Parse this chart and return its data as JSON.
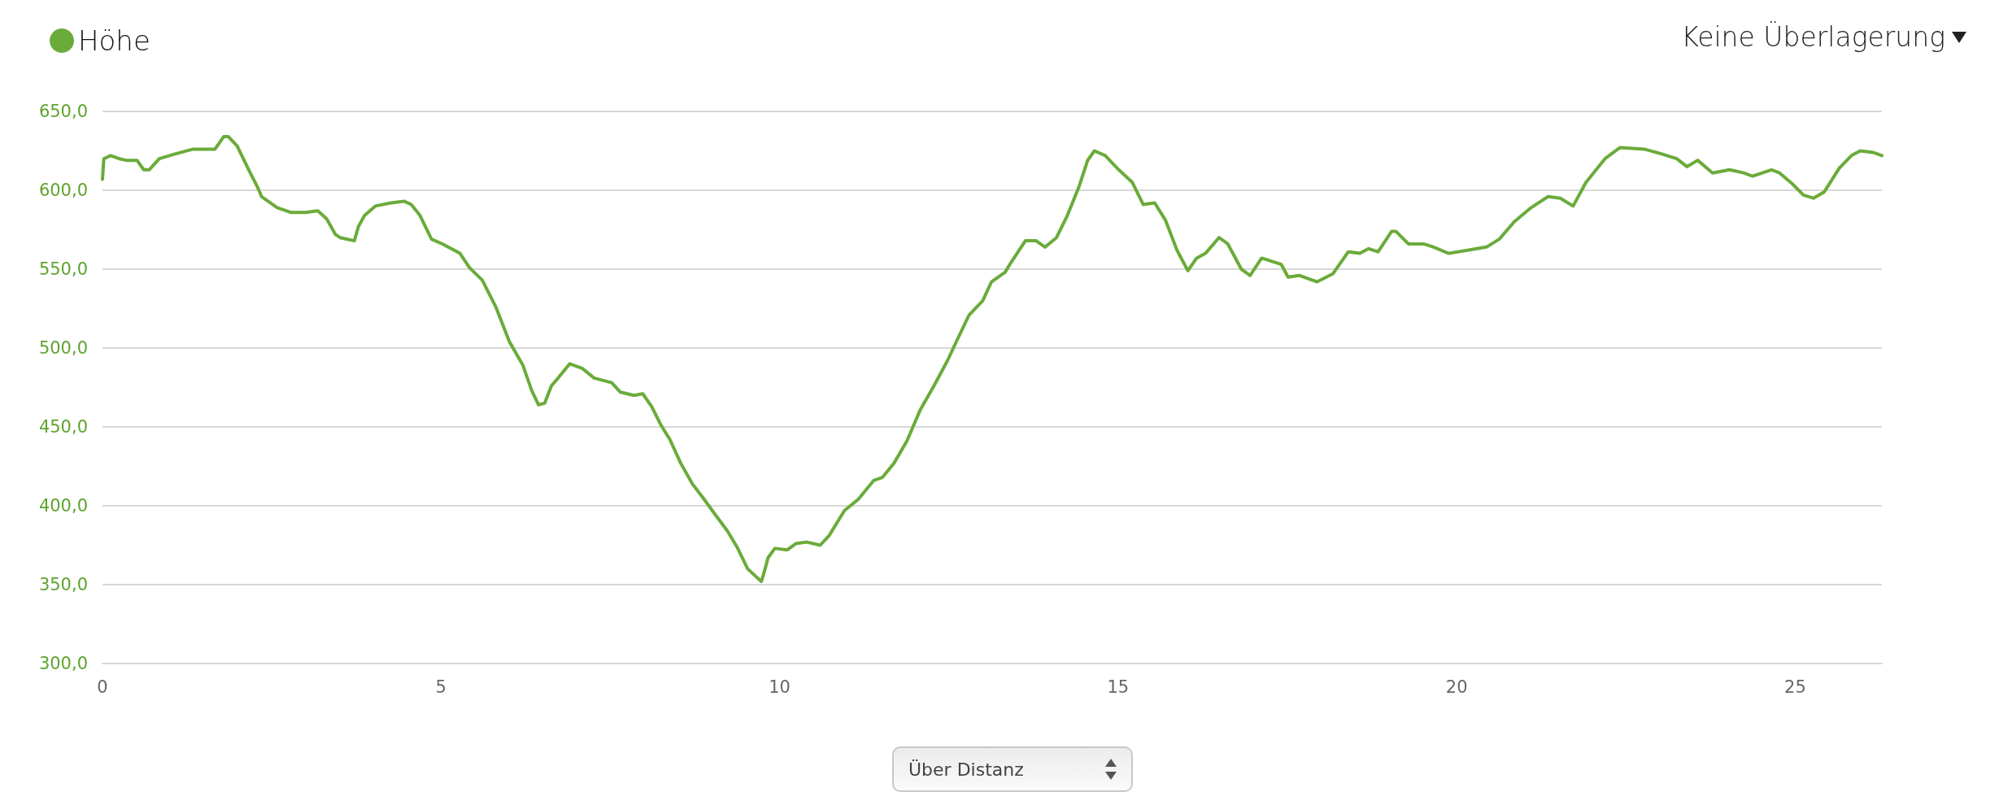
{
  "chart_data": {
    "type": "line",
    "xlim": [
      0,
      26.28
    ],
    "xticks": [
      0,
      5,
      10,
      15,
      20,
      25
    ],
    "ylim": [
      300,
      650
    ],
    "yticks": [
      {
        "value": 300,
        "label": "300,0"
      },
      {
        "value": 350,
        "label": "350,0"
      },
      {
        "value": 400,
        "label": "400,0"
      },
      {
        "value": 450,
        "label": "450,0"
      },
      {
        "value": 500,
        "label": "500,0"
      },
      {
        "value": 550,
        "label": "550,0"
      },
      {
        "value": 600,
        "label": "600,0"
      },
      {
        "value": 650,
        "label": "650,0"
      }
    ],
    "grid": "y",
    "legend": "top left",
    "marker": "none",
    "line_style": "solid",
    "annotations": [
      "Keine Überlagerung",
      "Über Distanz"
    ],
    "series": [
      {
        "name": "Höhe",
        "color": "#6aab3a",
        "x": [
          0,
          0.02,
          0.12,
          0.25,
          0.35,
          0.51,
          0.61,
          0.69,
          0.84,
          1.07,
          1.33,
          1.66,
          1.79,
          1.86,
          1.99,
          2.16,
          2.29,
          2.35,
          2.58,
          2.78,
          3.0,
          3.18,
          3.31,
          3.44,
          3.51,
          3.72,
          3.78,
          3.87,
          4.03,
          4.26,
          4.46,
          4.56,
          4.69,
          4.86,
          5.02,
          5.15,
          5.28,
          5.42,
          5.61,
          5.81,
          6.01,
          6.21,
          6.34,
          6.44,
          6.53,
          6.63,
          6.73,
          6.9,
          7.09,
          7.26,
          7.52,
          7.65,
          7.85,
          7.98,
          8.11,
          8.25,
          8.38,
          8.54,
          8.71,
          8.87,
          9.04,
          9.23,
          9.37,
          9.53,
          9.73,
          9.76,
          9.83,
          9.93,
          10.11,
          10.24,
          10.4,
          10.6,
          10.73,
          10.96,
          11.16,
          11.39,
          11.52,
          11.69,
          11.88,
          12.08,
          12.28,
          12.48,
          12.61,
          12.8,
          13.0,
          13.13,
          13.33,
          13.43,
          13.63,
          13.79,
          13.92,
          14.09,
          14.25,
          14.42,
          14.55,
          14.65,
          14.81,
          15.01,
          15.21,
          15.37,
          15.54,
          15.7,
          15.87,
          16.03,
          16.16,
          16.29,
          16.49,
          16.62,
          16.82,
          16.95,
          17.12,
          17.41,
          17.51,
          17.68,
          17.94,
          18.17,
          18.4,
          18.57,
          18.7,
          18.84,
          19.04,
          19.1,
          19.29,
          19.51,
          19.66,
          19.88,
          20.16,
          20.44,
          20.63,
          20.85,
          21.1,
          21.35,
          21.53,
          21.72,
          21.91,
          22.19,
          22.41,
          22.78,
          23.03,
          23.25,
          23.4,
          23.56,
          23.78,
          24.03,
          24.24,
          24.37,
          24.65,
          24.77,
          24.96,
          25.12,
          25.27,
          25.43,
          25.65,
          25.83,
          25.96,
          26.15,
          26.28
        ],
        "values": [
          607,
          620,
          622,
          620,
          619,
          619,
          613,
          613,
          620,
          623,
          626,
          626,
          634,
          634,
          628,
          613,
          602,
          596,
          589,
          586,
          586,
          587,
          582,
          572,
          570,
          568,
          577,
          584,
          590,
          592,
          593,
          591,
          584,
          569,
          566,
          563,
          560,
          551,
          543,
          526,
          504,
          489,
          473,
          464,
          465,
          476,
          481,
          490,
          487,
          481,
          478,
          472,
          470,
          471,
          463,
          451,
          442,
          427,
          414,
          405,
          395,
          384,
          374,
          360,
          352,
          356,
          367,
          373,
          372,
          376,
          377,
          375,
          381,
          397,
          404,
          416,
          418,
          427,
          441,
          461,
          476,
          492,
          504,
          521,
          530,
          542,
          548,
          555,
          568,
          568,
          564,
          570,
          584,
          602,
          619,
          625,
          622,
          613,
          605,
          591,
          592,
          581,
          562,
          549,
          557,
          560,
          570,
          566,
          550,
          546,
          557,
          553,
          545,
          546,
          542,
          547,
          561,
          560,
          563,
          561,
          574,
          574,
          566,
          566,
          564,
          560,
          562,
          564,
          569,
          580,
          589,
          596,
          595,
          590,
          605,
          620,
          627,
          626,
          623,
          620,
          615,
          619,
          611,
          613,
          611,
          609,
          613,
          611,
          604,
          597,
          595,
          599,
          614,
          622,
          625,
          624,
          622
        ]
      }
    ]
  }
}
